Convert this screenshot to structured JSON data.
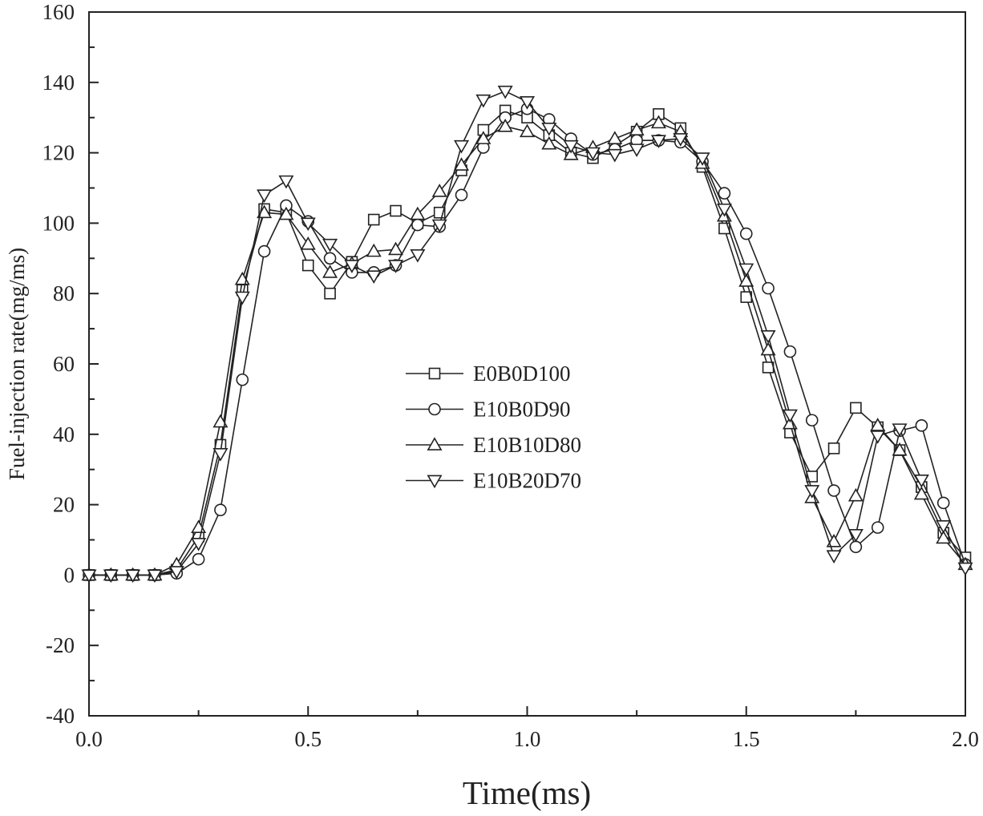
{
  "chart_data": {
    "type": "line",
    "title": "",
    "xlabel": "Time(ms)",
    "ylabel": "Fuel-injection rate(mg/ms)",
    "xlim": [
      0,
      2.0
    ],
    "ylim": [
      -40,
      160
    ],
    "xticks": [
      0.0,
      0.5,
      1.0,
      1.5,
      2.0
    ],
    "xtick_labels": [
      "0.0",
      "0.5",
      "1.0",
      "1.5",
      "2.0"
    ],
    "yticks": [
      -40,
      -20,
      0,
      20,
      40,
      60,
      80,
      100,
      120,
      140,
      160
    ],
    "ytick_labels": [
      "-40",
      "-20",
      "0",
      "20",
      "40",
      "60",
      "80",
      "100",
      "120",
      "140",
      "160"
    ],
    "grid": false,
    "legend_position": "center",
    "x": [
      0.0,
      0.05,
      0.1,
      0.15,
      0.2,
      0.25,
      0.3,
      0.35,
      0.4,
      0.45,
      0.5,
      0.55,
      0.6,
      0.65,
      0.7,
      0.75,
      0.8,
      0.85,
      0.9,
      0.95,
      1.0,
      1.05,
      1.1,
      1.15,
      1.2,
      1.25,
      1.3,
      1.35,
      1.4,
      1.45,
      1.5,
      1.55,
      1.6,
      1.65,
      1.7,
      1.75,
      1.8,
      1.85,
      1.9,
      1.95,
      2.0
    ],
    "series": [
      {
        "name": "E0B0D100",
        "marker": "square",
        "values": [
          0,
          0,
          0,
          0,
          1.5,
          11,
          37,
          81,
          104,
          103,
          88,
          80,
          89,
          101,
          103.5,
          100,
          103,
          115,
          126.5,
          132,
          130,
          125,
          120,
          118.5,
          122,
          126,
          131,
          127,
          116,
          98.5,
          79,
          59,
          40.5,
          28,
          36,
          47.5,
          42,
          35.5,
          25,
          12,
          5
        ]
      },
      {
        "name": "E10B0D90",
        "marker": "circle",
        "values": [
          0,
          0,
          0,
          0,
          0.5,
          4.5,
          18.5,
          55.5,
          92,
          105,
          100.5,
          90,
          86,
          86,
          88,
          99.5,
          99,
          108,
          121.5,
          130,
          132.5,
          129.5,
          124,
          119.5,
          121,
          123.5,
          123.5,
          123,
          117.5,
          108.5,
          97,
          81.5,
          63.5,
          44,
          24,
          8,
          13.5,
          41,
          42.5,
          20.5,
          3
        ]
      },
      {
        "name": "E10B10D80",
        "marker": "triangle-up",
        "values": [
          0,
          0,
          0,
          0,
          3,
          13.5,
          43.5,
          84,
          103,
          102.5,
          94,
          86,
          88.5,
          92,
          92.5,
          102.5,
          109,
          116.5,
          124,
          127.5,
          126,
          122.5,
          119.5,
          121.5,
          124,
          126.5,
          128.5,
          126,
          117,
          102,
          83.5,
          64,
          43,
          22,
          9.5,
          22.5,
          42.5,
          35.5,
          23,
          10.5,
          3
        ]
      },
      {
        "name": "E10B20D70",
        "marker": "triangle-down",
        "values": [
          0,
          0,
          0,
          0,
          1,
          9,
          34.5,
          79,
          108,
          112,
          100,
          94,
          88,
          85,
          88,
          91,
          99.5,
          122,
          135,
          137.5,
          134.5,
          127,
          122,
          120,
          119.5,
          121,
          123.5,
          124,
          118.5,
          104,
          87,
          68,
          45.5,
          24,
          5.5,
          11.5,
          39.5,
          41.5,
          27,
          14,
          2
        ]
      }
    ]
  }
}
